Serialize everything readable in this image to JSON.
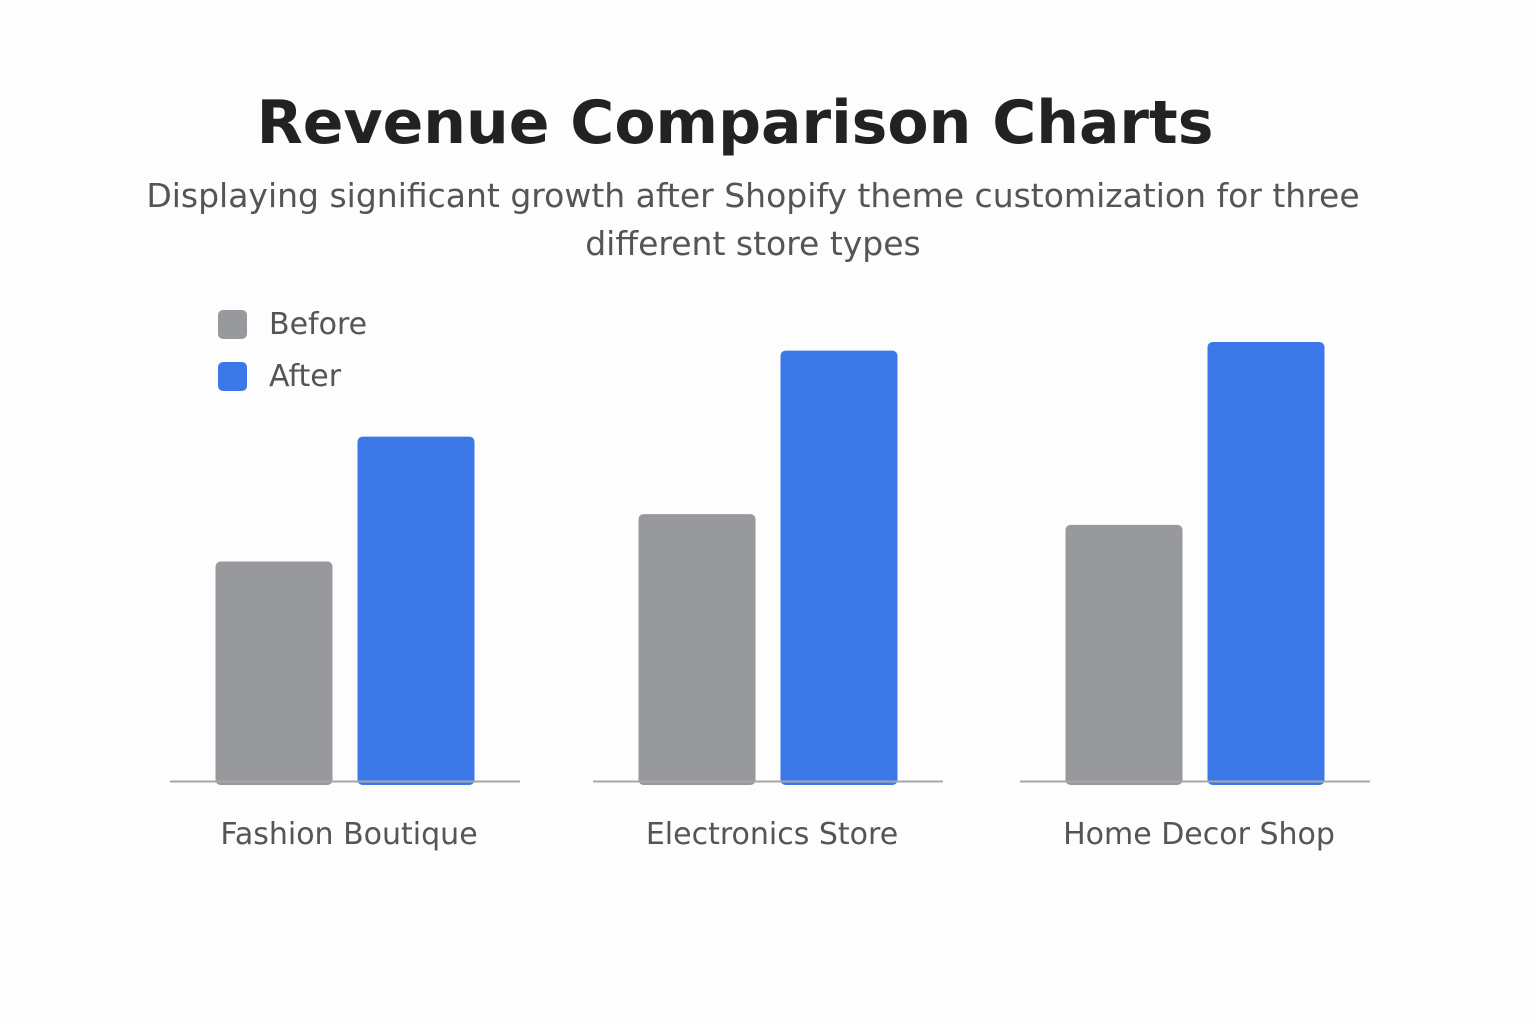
{
  "header": {
    "title": "Revenue Comparison Charts",
    "subtitle": "Displaying significant growth after Shopify theme customization for three different store types"
  },
  "colors": {
    "before": "#98999c",
    "after": "#3d78e8",
    "baseline": "#a7a7a7",
    "category_text": "#555555"
  },
  "chart_data": {
    "type": "bar",
    "title": "Revenue Comparison Charts",
    "subtitle": "Displaying significant growth after Shopify theme customization for three different store types",
    "categories": [
      "Fashion Boutique",
      "Electronics Store",
      "Home Decor Shop"
    ],
    "series": [
      {
        "name": "Before",
        "color": "#98999c",
        "values": [
          51,
          62,
          59.5
        ]
      },
      {
        "name": "After",
        "color": "#3d78e8",
        "values": [
          80,
          100,
          102
        ]
      }
    ],
    "ylim": [
      0,
      102
    ],
    "grid": false,
    "legend": "top-left",
    "axes_visible": false
  }
}
